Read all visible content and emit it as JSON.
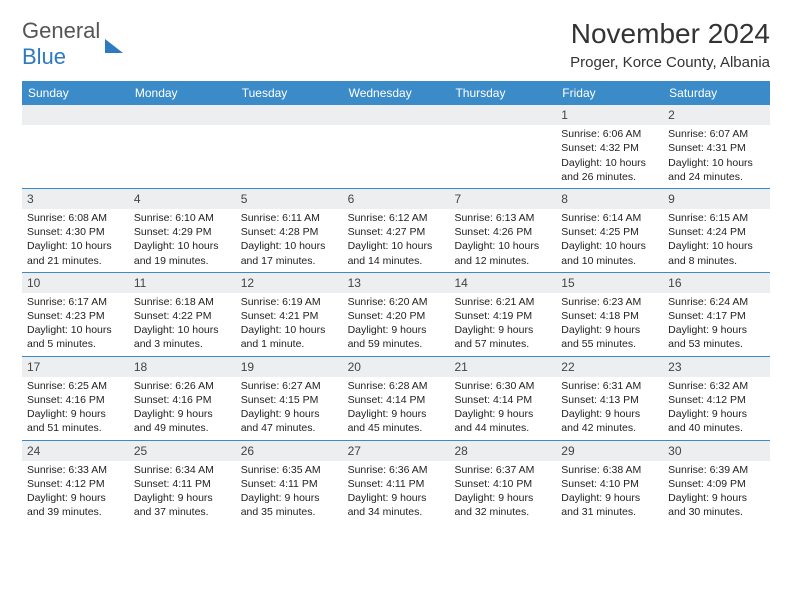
{
  "logo": {
    "line1": "General",
    "line2": "Blue"
  },
  "title": "November 2024",
  "location": "Proger, Korce County, Albania",
  "colors": {
    "header_bg": "#3b8bc9",
    "header_text": "#ffffff",
    "daynum_bg": "#eceef0",
    "border": "#3b8bc9",
    "logo_blue": "#2c7ac0",
    "text": "#222222"
  },
  "day_headers": [
    "Sunday",
    "Monday",
    "Tuesday",
    "Wednesday",
    "Thursday",
    "Friday",
    "Saturday"
  ],
  "weeks": [
    [
      {
        "n": "",
        "sr": "",
        "ss": "",
        "dl": ""
      },
      {
        "n": "",
        "sr": "",
        "ss": "",
        "dl": ""
      },
      {
        "n": "",
        "sr": "",
        "ss": "",
        "dl": ""
      },
      {
        "n": "",
        "sr": "",
        "ss": "",
        "dl": ""
      },
      {
        "n": "",
        "sr": "",
        "ss": "",
        "dl": ""
      },
      {
        "n": "1",
        "sr": "Sunrise: 6:06 AM",
        "ss": "Sunset: 4:32 PM",
        "dl": "Daylight: 10 hours and 26 minutes."
      },
      {
        "n": "2",
        "sr": "Sunrise: 6:07 AM",
        "ss": "Sunset: 4:31 PM",
        "dl": "Daylight: 10 hours and 24 minutes."
      }
    ],
    [
      {
        "n": "3",
        "sr": "Sunrise: 6:08 AM",
        "ss": "Sunset: 4:30 PM",
        "dl": "Daylight: 10 hours and 21 minutes."
      },
      {
        "n": "4",
        "sr": "Sunrise: 6:10 AM",
        "ss": "Sunset: 4:29 PM",
        "dl": "Daylight: 10 hours and 19 minutes."
      },
      {
        "n": "5",
        "sr": "Sunrise: 6:11 AM",
        "ss": "Sunset: 4:28 PM",
        "dl": "Daylight: 10 hours and 17 minutes."
      },
      {
        "n": "6",
        "sr": "Sunrise: 6:12 AM",
        "ss": "Sunset: 4:27 PM",
        "dl": "Daylight: 10 hours and 14 minutes."
      },
      {
        "n": "7",
        "sr": "Sunrise: 6:13 AM",
        "ss": "Sunset: 4:26 PM",
        "dl": "Daylight: 10 hours and 12 minutes."
      },
      {
        "n": "8",
        "sr": "Sunrise: 6:14 AM",
        "ss": "Sunset: 4:25 PM",
        "dl": "Daylight: 10 hours and 10 minutes."
      },
      {
        "n": "9",
        "sr": "Sunrise: 6:15 AM",
        "ss": "Sunset: 4:24 PM",
        "dl": "Daylight: 10 hours and 8 minutes."
      }
    ],
    [
      {
        "n": "10",
        "sr": "Sunrise: 6:17 AM",
        "ss": "Sunset: 4:23 PM",
        "dl": "Daylight: 10 hours and 5 minutes."
      },
      {
        "n": "11",
        "sr": "Sunrise: 6:18 AM",
        "ss": "Sunset: 4:22 PM",
        "dl": "Daylight: 10 hours and 3 minutes."
      },
      {
        "n": "12",
        "sr": "Sunrise: 6:19 AM",
        "ss": "Sunset: 4:21 PM",
        "dl": "Daylight: 10 hours and 1 minute."
      },
      {
        "n": "13",
        "sr": "Sunrise: 6:20 AM",
        "ss": "Sunset: 4:20 PM",
        "dl": "Daylight: 9 hours and 59 minutes."
      },
      {
        "n": "14",
        "sr": "Sunrise: 6:21 AM",
        "ss": "Sunset: 4:19 PM",
        "dl": "Daylight: 9 hours and 57 minutes."
      },
      {
        "n": "15",
        "sr": "Sunrise: 6:23 AM",
        "ss": "Sunset: 4:18 PM",
        "dl": "Daylight: 9 hours and 55 minutes."
      },
      {
        "n": "16",
        "sr": "Sunrise: 6:24 AM",
        "ss": "Sunset: 4:17 PM",
        "dl": "Daylight: 9 hours and 53 minutes."
      }
    ],
    [
      {
        "n": "17",
        "sr": "Sunrise: 6:25 AM",
        "ss": "Sunset: 4:16 PM",
        "dl": "Daylight: 9 hours and 51 minutes."
      },
      {
        "n": "18",
        "sr": "Sunrise: 6:26 AM",
        "ss": "Sunset: 4:16 PM",
        "dl": "Daylight: 9 hours and 49 minutes."
      },
      {
        "n": "19",
        "sr": "Sunrise: 6:27 AM",
        "ss": "Sunset: 4:15 PM",
        "dl": "Daylight: 9 hours and 47 minutes."
      },
      {
        "n": "20",
        "sr": "Sunrise: 6:28 AM",
        "ss": "Sunset: 4:14 PM",
        "dl": "Daylight: 9 hours and 45 minutes."
      },
      {
        "n": "21",
        "sr": "Sunrise: 6:30 AM",
        "ss": "Sunset: 4:14 PM",
        "dl": "Daylight: 9 hours and 44 minutes."
      },
      {
        "n": "22",
        "sr": "Sunrise: 6:31 AM",
        "ss": "Sunset: 4:13 PM",
        "dl": "Daylight: 9 hours and 42 minutes."
      },
      {
        "n": "23",
        "sr": "Sunrise: 6:32 AM",
        "ss": "Sunset: 4:12 PM",
        "dl": "Daylight: 9 hours and 40 minutes."
      }
    ],
    [
      {
        "n": "24",
        "sr": "Sunrise: 6:33 AM",
        "ss": "Sunset: 4:12 PM",
        "dl": "Daylight: 9 hours and 39 minutes."
      },
      {
        "n": "25",
        "sr": "Sunrise: 6:34 AM",
        "ss": "Sunset: 4:11 PM",
        "dl": "Daylight: 9 hours and 37 minutes."
      },
      {
        "n": "26",
        "sr": "Sunrise: 6:35 AM",
        "ss": "Sunset: 4:11 PM",
        "dl": "Daylight: 9 hours and 35 minutes."
      },
      {
        "n": "27",
        "sr": "Sunrise: 6:36 AM",
        "ss": "Sunset: 4:11 PM",
        "dl": "Daylight: 9 hours and 34 minutes."
      },
      {
        "n": "28",
        "sr": "Sunrise: 6:37 AM",
        "ss": "Sunset: 4:10 PM",
        "dl": "Daylight: 9 hours and 32 minutes."
      },
      {
        "n": "29",
        "sr": "Sunrise: 6:38 AM",
        "ss": "Sunset: 4:10 PM",
        "dl": "Daylight: 9 hours and 31 minutes."
      },
      {
        "n": "30",
        "sr": "Sunrise: 6:39 AM",
        "ss": "Sunset: 4:09 PM",
        "dl": "Daylight: 9 hours and 30 minutes."
      }
    ]
  ]
}
